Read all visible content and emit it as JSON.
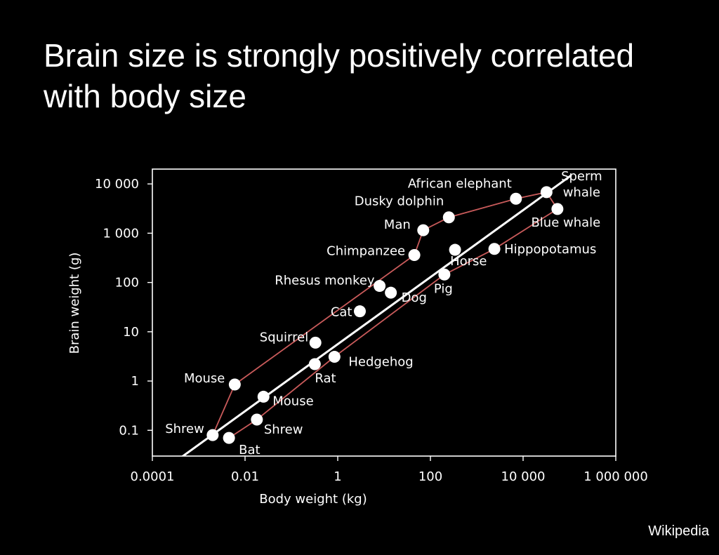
{
  "slide": {
    "title_line1": "Brain size is strongly positively correlated",
    "title_line2": "with body size",
    "credit": "Wikipedia"
  },
  "chart_data": {
    "type": "scatter",
    "xlabel": "Body weight (kg)",
    "ylabel": "Brain weight (g)",
    "xscale": "log",
    "yscale": "log",
    "xlim": [
      0.0001,
      1000000
    ],
    "ylim": [
      0.03,
      20000
    ],
    "xticks": [
      0.0001,
      0.01,
      1,
      100,
      10000,
      1000000
    ],
    "xtick_labels": [
      "0.0001",
      "0.01",
      "1",
      "100",
      "10 000",
      "1 000 000"
    ],
    "yticks": [
      0.1,
      1,
      10,
      100,
      1000,
      10000
    ],
    "ytick_labels": [
      "0.1",
      "1",
      "10",
      "100",
      "1 000",
      "10 000"
    ],
    "grid": false,
    "colors": {
      "background": "#000000",
      "points": "#ffffff",
      "connectors": "#c85a5a",
      "trend": "#ffffff",
      "text": "#ffffff"
    },
    "points": [
      {
        "label": "Shrew",
        "x": 0.002,
        "y": 0.08
      },
      {
        "label": "Bat",
        "x": 0.0045,
        "y": 0.07
      },
      {
        "label": "Mouse",
        "x": 0.006,
        "y": 0.85
      },
      {
        "label": "Mouse",
        "x": 0.025,
        "y": 0.48
      },
      {
        "label": "Shrew",
        "x": 0.018,
        "y": 0.165
      },
      {
        "label": "Squirrel",
        "x": 0.33,
        "y": 6
      },
      {
        "label": "Rat",
        "x": 0.32,
        "y": 2.2
      },
      {
        "label": "Hedgehog",
        "x": 0.85,
        "y": 3.1
      },
      {
        "label": "Cat",
        "x": 3,
        "y": 26
      },
      {
        "label": "Rhesus monkey",
        "x": 8,
        "y": 85
      },
      {
        "label": "Dog",
        "x": 14,
        "y": 62
      },
      {
        "label": "Chimpanzee",
        "x": 45,
        "y": 360
      },
      {
        "label": "Man",
        "x": 70,
        "y": 1150
      },
      {
        "label": "Dusky dolphin",
        "x": 250,
        "y": 2100
      },
      {
        "label": "Horse",
        "x": 340,
        "y": 460
      },
      {
        "label": "Pig",
        "x": 200,
        "y": 145
      },
      {
        "label": "Hippopotamus",
        "x": 2400,
        "y": 480
      },
      {
        "label": "African elephant",
        "x": 7000,
        "y": 5000
      },
      {
        "label": "Sperm whale",
        "x": 32000,
        "y": 6800
      },
      {
        "label": "Blue whale",
        "x": 55000,
        "y": 3100
      }
    ],
    "connectors": [
      [
        "Shrew",
        "Mouse",
        "Chimpanzee",
        "Man",
        "Dusky dolphin",
        "African elephant",
        "Sperm whale",
        "Blue whale"
      ],
      [
        "Bat",
        "Shrew",
        "Hedgehog",
        "Pig",
        "Hippopotamus",
        "Blue whale"
      ]
    ],
    "trend_line": {
      "x": [
        0.00035,
        110000
      ],
      "y": [
        0.025,
        15000
      ]
    }
  }
}
